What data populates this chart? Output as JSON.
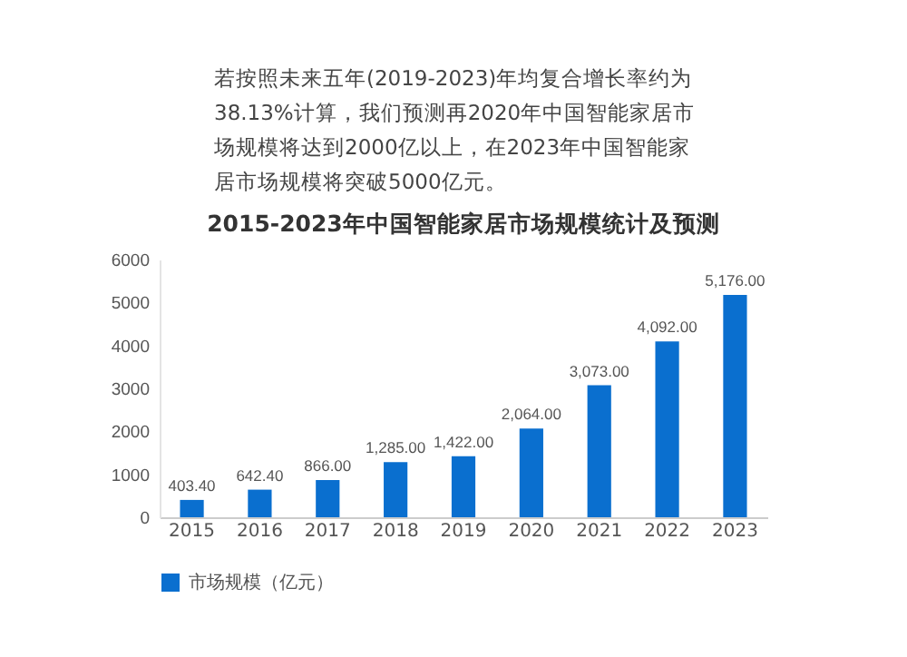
{
  "chart_data": {
    "type": "bar",
    "title": "2015-2023年中国智能家居市场规模统计及预测",
    "annotations": [
      "若按照未来五年(2019-2023)年均复合增长率约为38.13%计算，我们预测再2020年中国智能家居市场规模将达到2000亿以上，在2023年中国智能家居市场规模将突破5000亿元。"
    ],
    "categories": [
      "2015",
      "2016",
      "2017",
      "2018",
      "2019",
      "2020",
      "2021",
      "2022",
      "2023"
    ],
    "series": [
      {
        "name": "市场规模（亿元）",
        "color": "#0a6fcf",
        "values": [
          403.4,
          642.4,
          866,
          1285,
          1422,
          2064,
          3073,
          4092,
          5176
        ]
      }
    ],
    "value_labels": [
      "403.40",
      "642.40",
      "866.00",
      "1,285.00",
      "1,422.00",
      "2,064.00",
      "3,073.00",
      "4,092.00",
      "5,176.00"
    ],
    "ylim": [
      0,
      6000
    ],
    "yticks": [
      0,
      1000,
      2000,
      3000,
      4000,
      5000,
      6000
    ],
    "grid": false,
    "legend": "bottom"
  }
}
